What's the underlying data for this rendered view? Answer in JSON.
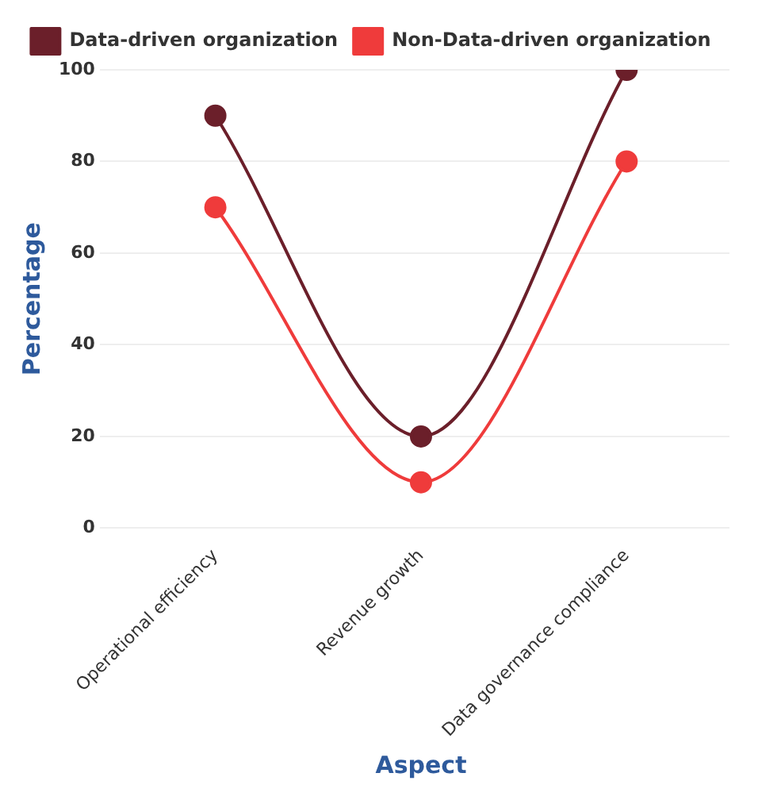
{
  "chart_data": {
    "type": "line",
    "xlabel": "Aspect",
    "ylabel": "Percentage",
    "categories": [
      "Operational efficiency",
      "Revenue growth",
      "Data governance compliance"
    ],
    "series": [
      {
        "name": "Data-driven organization",
        "color": "#6b1f2a",
        "values": [
          90,
          20,
          100
        ]
      },
      {
        "name": "Non-Data-driven organization",
        "color": "#ef3b3b",
        "values": [
          70,
          10,
          80
        ]
      }
    ],
    "ylim": [
      0,
      100
    ],
    "yticks": [
      0,
      20,
      40,
      60,
      80,
      100
    ],
    "grid": "y",
    "legend": "top",
    "marker": "circle",
    "line_style": "solid"
  }
}
